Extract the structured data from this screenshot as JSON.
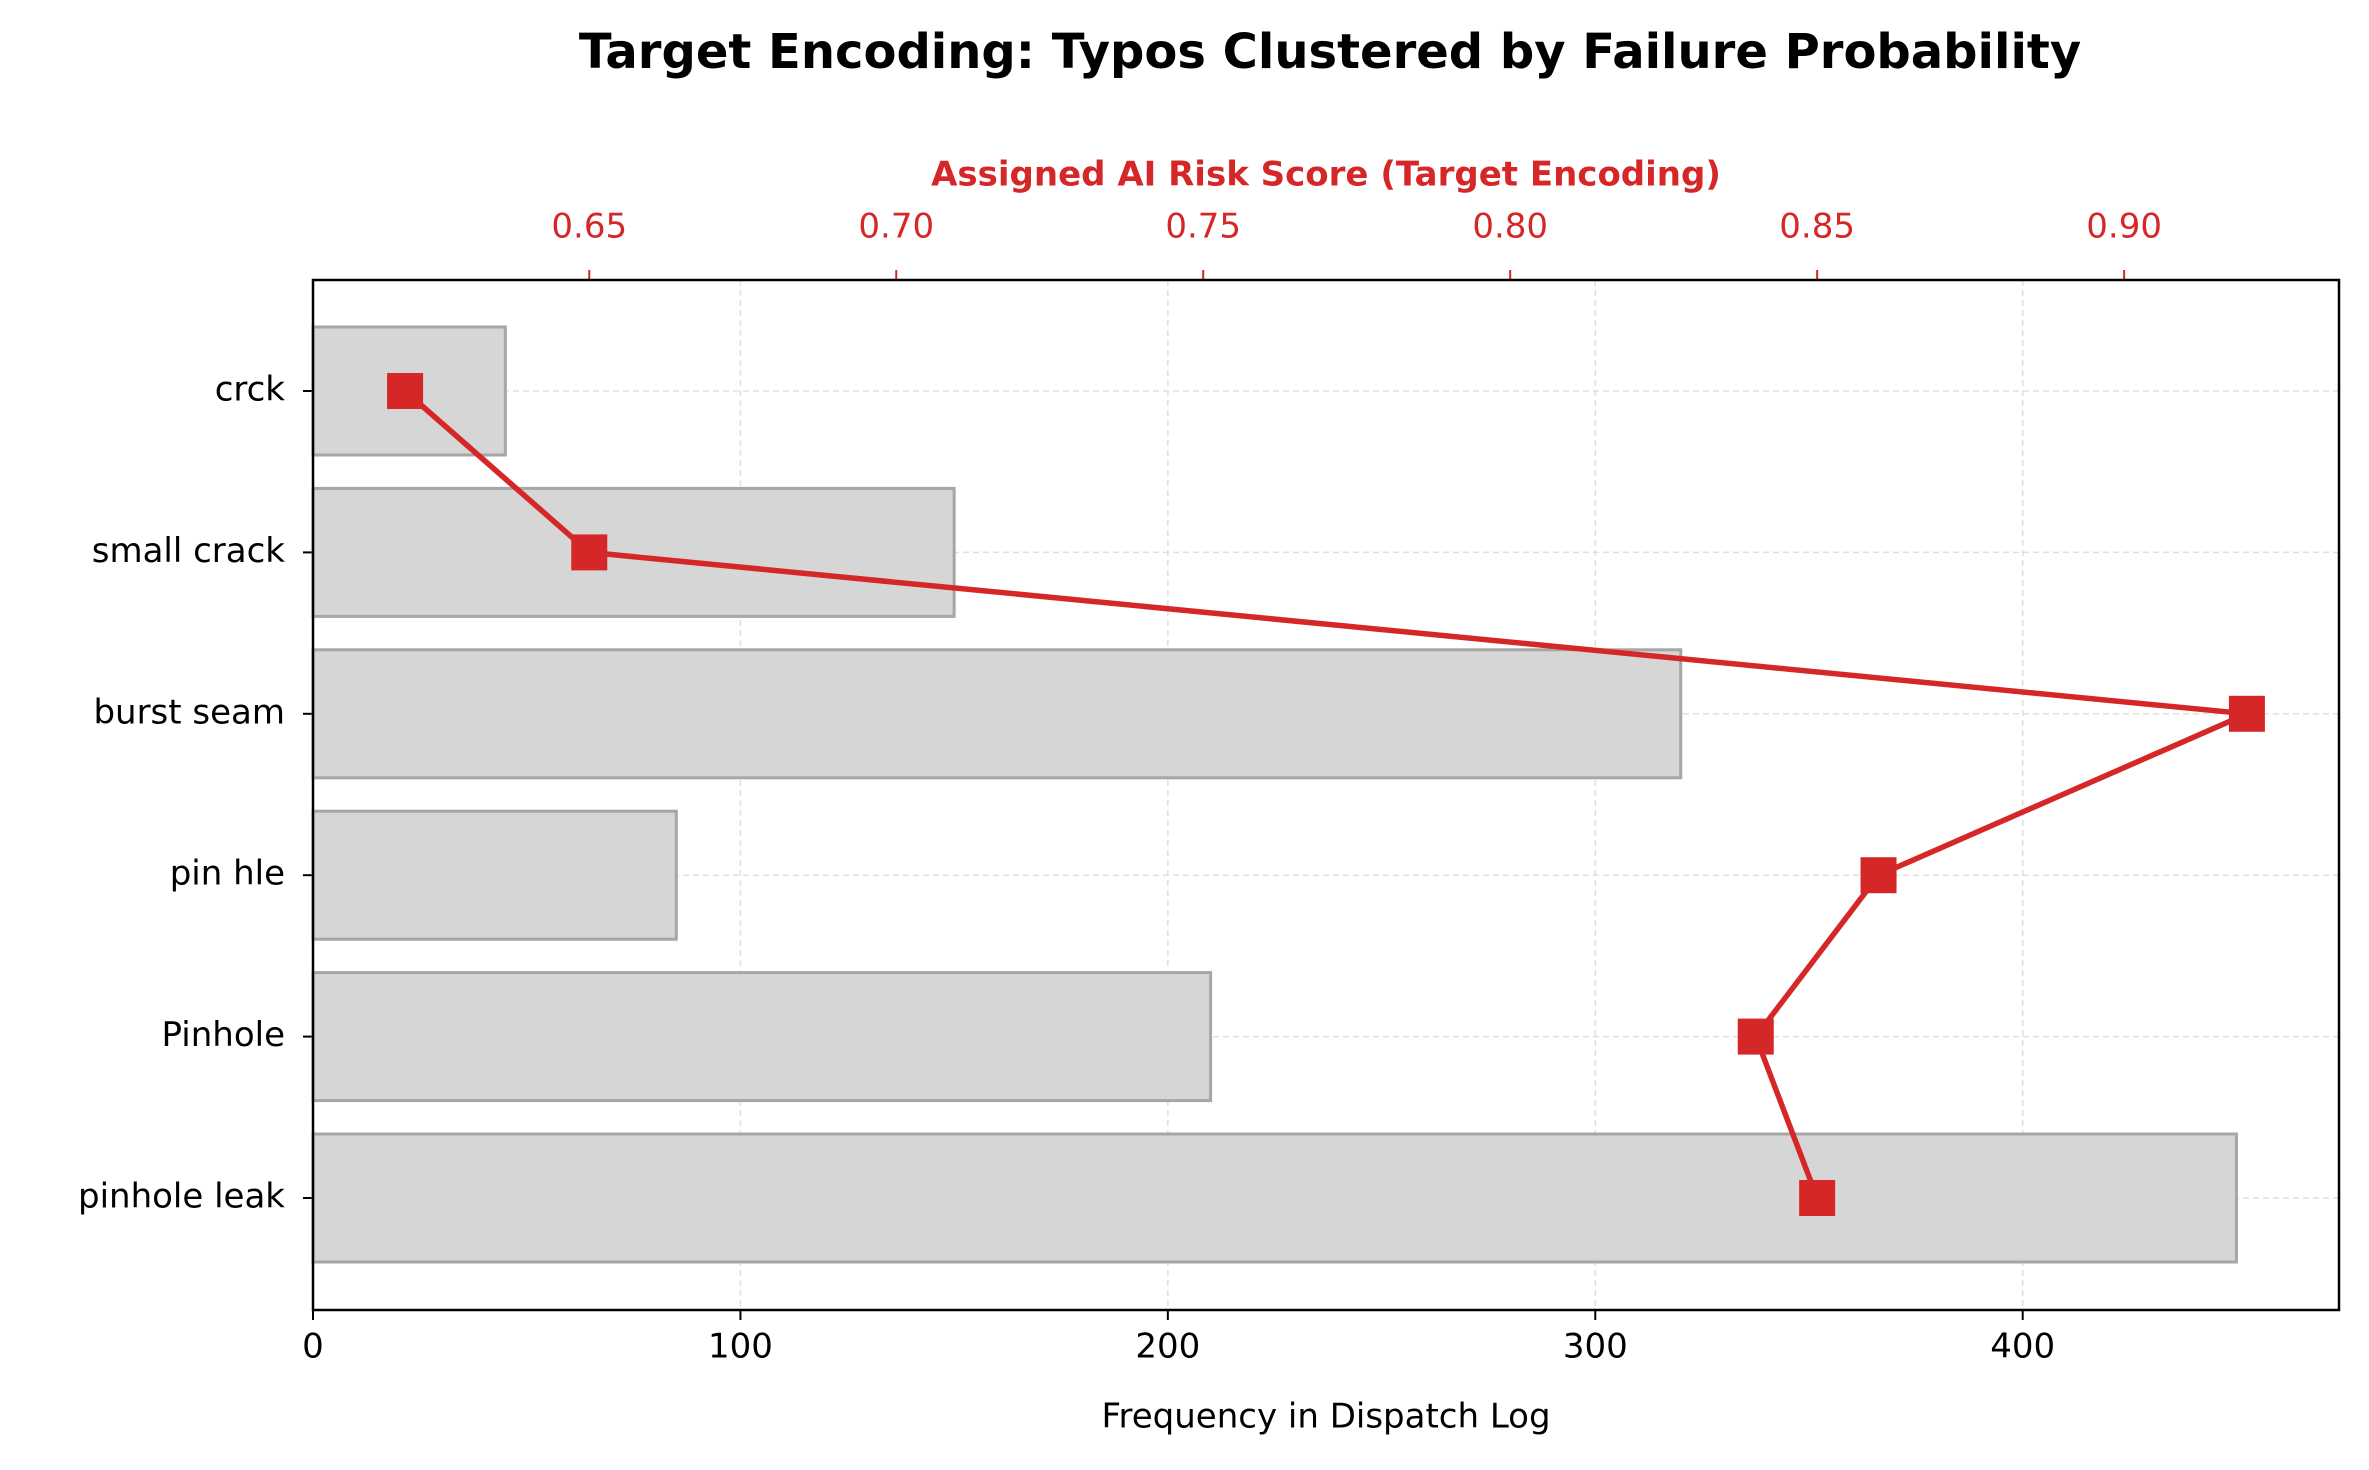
{
  "chart_data": {
    "type": "bar",
    "orientation": "horizontal",
    "title": "Target Encoding: Typos Clustered by Failure Probability",
    "xlabel": "Frequency in Dispatch Log",
    "x2label": "Assigned AI Risk Score (Target Encoding)",
    "categories": [
      "crck",
      "small crack",
      "burst seam",
      "pin hle",
      "Pinhole",
      "pinhole leak"
    ],
    "series": [
      {
        "type": "bar",
        "color": "#d6d6d6",
        "values": [
          45,
          150,
          320,
          85,
          210,
          450
        ]
      },
      {
        "type": "line",
        "axis": "x2",
        "color": "#d62728",
        "values": [
          0.62,
          0.65,
          0.92,
          0.86,
          0.84,
          0.85
        ]
      }
    ],
    "xlim": [
      0,
      474
    ],
    "xticks": [
      0,
      100,
      200,
      300,
      400
    ],
    "x2lim": [
      0.605,
      0.935
    ],
    "x2ticks": [
      0.65,
      {
        "value": 0.7,
        "label": "0.70"
      },
      0.75,
      {
        "value": 0.8,
        "label": "0.80"
      },
      0.85,
      {
        "value": 0.9,
        "label": "0.90"
      }
    ],
    "grid": true
  }
}
